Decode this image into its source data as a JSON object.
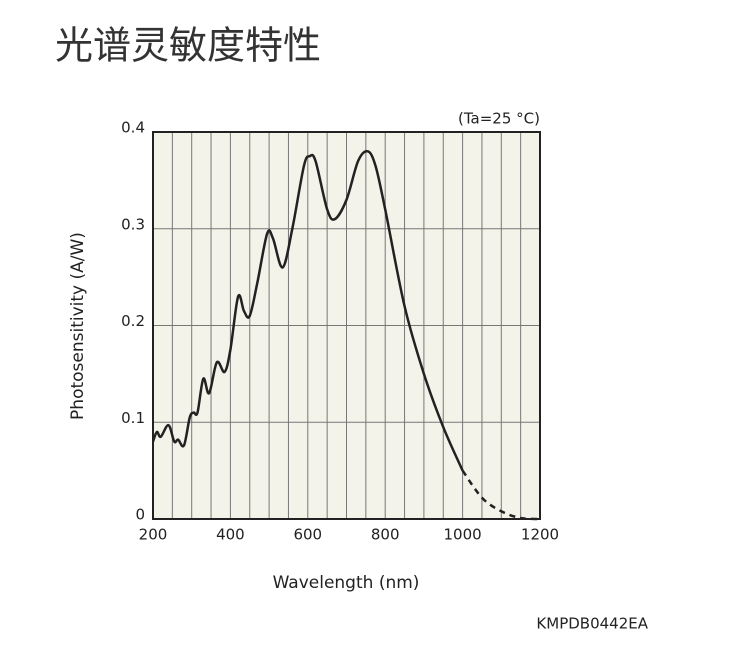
{
  "chart_data": {
    "type": "line",
    "title": "光谱灵敏度特性",
    "xlabel": "Wavelength (nm)",
    "ylabel": "Photosensitivity (A/W)",
    "annotation": "(Ta=25 °C)",
    "footer": "KMPDB0442EA",
    "xlim": [
      200,
      1200
    ],
    "ylim": [
      0,
      0.4
    ],
    "xticks": [
      200,
      400,
      600,
      800,
      1000,
      1200
    ],
    "x_minor_grid": [
      250,
      300,
      350,
      450,
      500,
      550,
      650,
      700,
      750,
      850,
      900,
      950,
      1050,
      1100,
      1150
    ],
    "yticks": [
      0,
      0.1,
      0.2,
      0.3,
      0.4
    ],
    "grid": true,
    "background": "#f3f3ea",
    "color": "#222222",
    "series": [
      {
        "style": "solid",
        "x": [
          200,
          210,
          220,
          240,
          255,
          265,
          280,
          295,
          305,
          315,
          330,
          345,
          365,
          385,
          400,
          420,
          435,
          450,
          470,
          495,
          510,
          535,
          560,
          590,
          605,
          620,
          650,
          670,
          700,
          730,
          755,
          775,
          800,
          850,
          900,
          950,
          1000
        ],
        "values": [
          0.08,
          0.09,
          0.085,
          0.097,
          0.08,
          0.082,
          0.076,
          0.105,
          0.11,
          0.11,
          0.145,
          0.13,
          0.162,
          0.152,
          0.175,
          0.23,
          0.215,
          0.21,
          0.245,
          0.295,
          0.29,
          0.26,
          0.3,
          0.365,
          0.375,
          0.37,
          0.32,
          0.31,
          0.33,
          0.37,
          0.38,
          0.365,
          0.32,
          0.22,
          0.15,
          0.095,
          0.05
        ]
      },
      {
        "style": "dashed",
        "x": [
          1000,
          1050,
          1100,
          1150,
          1200
        ],
        "values": [
          0.05,
          0.022,
          0.008,
          0.001,
          0
        ]
      }
    ]
  }
}
